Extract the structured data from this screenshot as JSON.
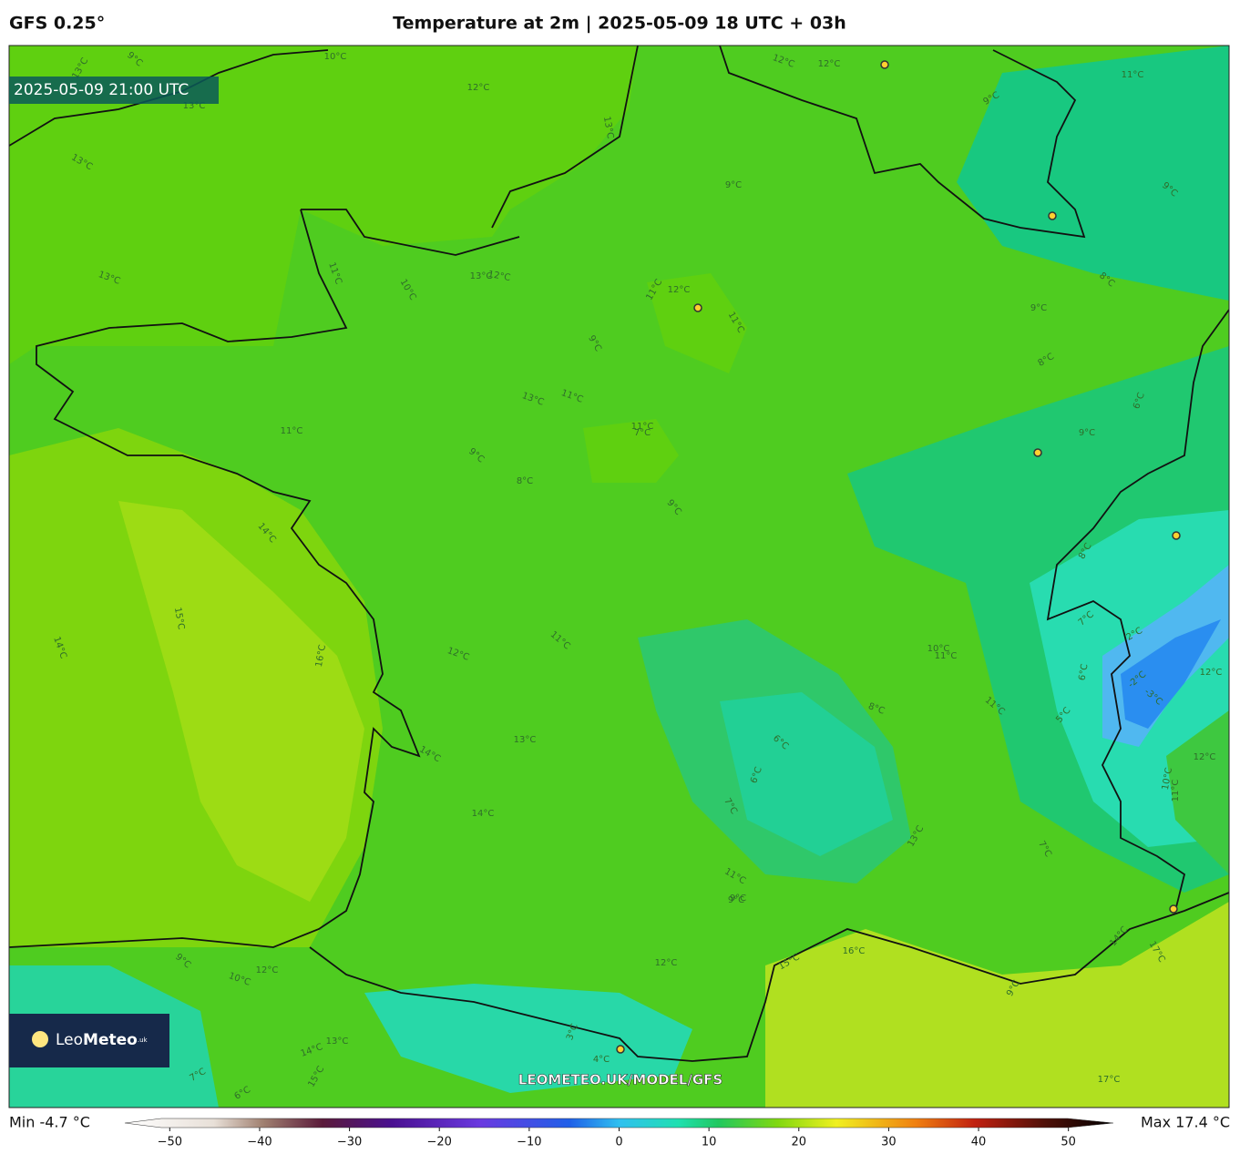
{
  "header": {
    "model": "GFS 0.25°",
    "title": "Temperature at 2m | 2025-05-09 18 UTC + 03h"
  },
  "map": {
    "valid_time": "2025-05-09 21:00 UTC",
    "watermark": "LEOMETEO.UK/MODEL/GFS",
    "logo": {
      "name_light": "Leo",
      "name_bold": "Meteo",
      "suffix": ".uk"
    },
    "contour_labels": [
      "13°C",
      "9°C",
      "10°C",
      "12°C",
      "12°C",
      "12°C",
      "11°C",
      "9°C",
      "13°C",
      "13°C",
      "13°C",
      "9°C",
      "8°C",
      "9°C",
      "13°C",
      "12°C",
      "13°C",
      "11°C",
      "9°C",
      "10°C",
      "11°C",
      "11°C",
      "12°C",
      "13°C",
      "11°C",
      "11°C",
      "11°C",
      "7°C",
      "9°C",
      "8°C",
      "9°C",
      "9°C",
      "8°C",
      "6°C",
      "9°C",
      "14°C",
      "15°C",
      "16°C",
      "14°C",
      "12°C",
      "11°C",
      "13°C",
      "14°C",
      "14°C",
      "10°C",
      "11°C",
      "8°C",
      "6°C",
      "6°C",
      "7°C",
      "13°C",
      "11°C",
      "9°C",
      "12°C",
      "16°C",
      "15°C",
      "17°C",
      "17°C",
      "12°C",
      "14°C",
      "9°C",
      "10°C",
      "11°C",
      "8°C",
      "7°C",
      "6°C",
      "5°C",
      "4°C",
      "3°C",
      "2°C",
      "-2°C",
      "-3°C",
      "12°C",
      "11°C",
      "7°C",
      "9°C",
      "7°C",
      "6°C",
      "9°C",
      "10°C",
      "13°C",
      "14°C",
      "15°C",
      "12°C"
    ]
  },
  "colorbar": {
    "min_label": "Min -4.7 °C",
    "max_label": "Max 17.4 °C",
    "lim": [
      -55,
      55
    ],
    "ticks": [
      {
        "value": -50,
        "label": "−50"
      },
      {
        "value": -40,
        "label": "−40"
      },
      {
        "value": -30,
        "label": "−30"
      },
      {
        "value": -20,
        "label": "−20"
      },
      {
        "value": -10,
        "label": "−10"
      },
      0,
      10,
      20,
      30,
      40,
      50
    ]
  }
}
